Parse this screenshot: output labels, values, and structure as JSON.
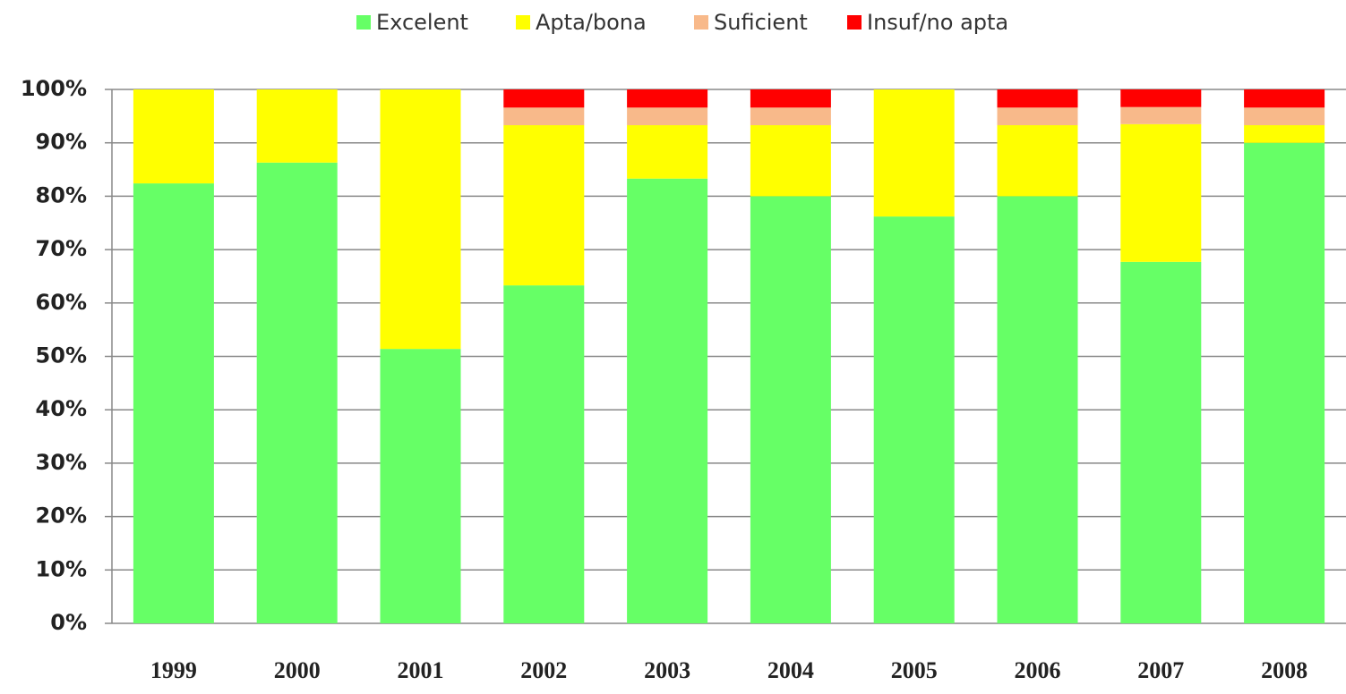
{
  "chart_data": {
    "type": "stacked_bar",
    "categories": [
      "1999",
      "2000",
      "2001",
      "2002",
      "2003",
      "2004",
      "2005",
      "2006",
      "2007",
      "2008"
    ],
    "series": [
      {
        "name": "Excelent",
        "color": "#66ff66",
        "values": [
          82.4,
          86.3,
          51.4,
          63.3,
          83.3,
          80,
          76.2,
          80,
          67.7,
          90
        ]
      },
      {
        "name": "Apta/bona",
        "color": "#ffff00",
        "values": [
          17.6,
          13.7,
          48.6,
          30,
          10,
          13.3,
          23.8,
          13.3,
          25.8,
          3.3
        ]
      },
      {
        "name": "Suficient",
        "color": "#f8b98a",
        "values": [
          0,
          0,
          0,
          3.3,
          3.3,
          3.3,
          0,
          3.3,
          3.2,
          3.3
        ]
      },
      {
        "name": "Insuf/no apta",
        "color": "#ff0000",
        "values": [
          0,
          0,
          0,
          3.4,
          3.4,
          3.4,
          0,
          3.4,
          3.3,
          3.4
        ]
      }
    ],
    "ylim": [
      0,
      100
    ],
    "yticks": [
      {
        "value": 0,
        "label": "0%"
      },
      {
        "value": 10,
        "label": "10%"
      },
      {
        "value": 20,
        "label": "20%"
      },
      {
        "value": 30,
        "label": "30%"
      },
      {
        "value": 40,
        "label": "40%"
      },
      {
        "value": 50,
        "label": "50%"
      },
      {
        "value": 60,
        "label": "60%"
      },
      {
        "value": 70,
        "label": "70%"
      },
      {
        "value": 80,
        "label": "80%"
      },
      {
        "value": 90,
        "label": "90%"
      },
      {
        "value": 100,
        "label": "100%"
      }
    ],
    "grid": true,
    "legend": "top"
  }
}
